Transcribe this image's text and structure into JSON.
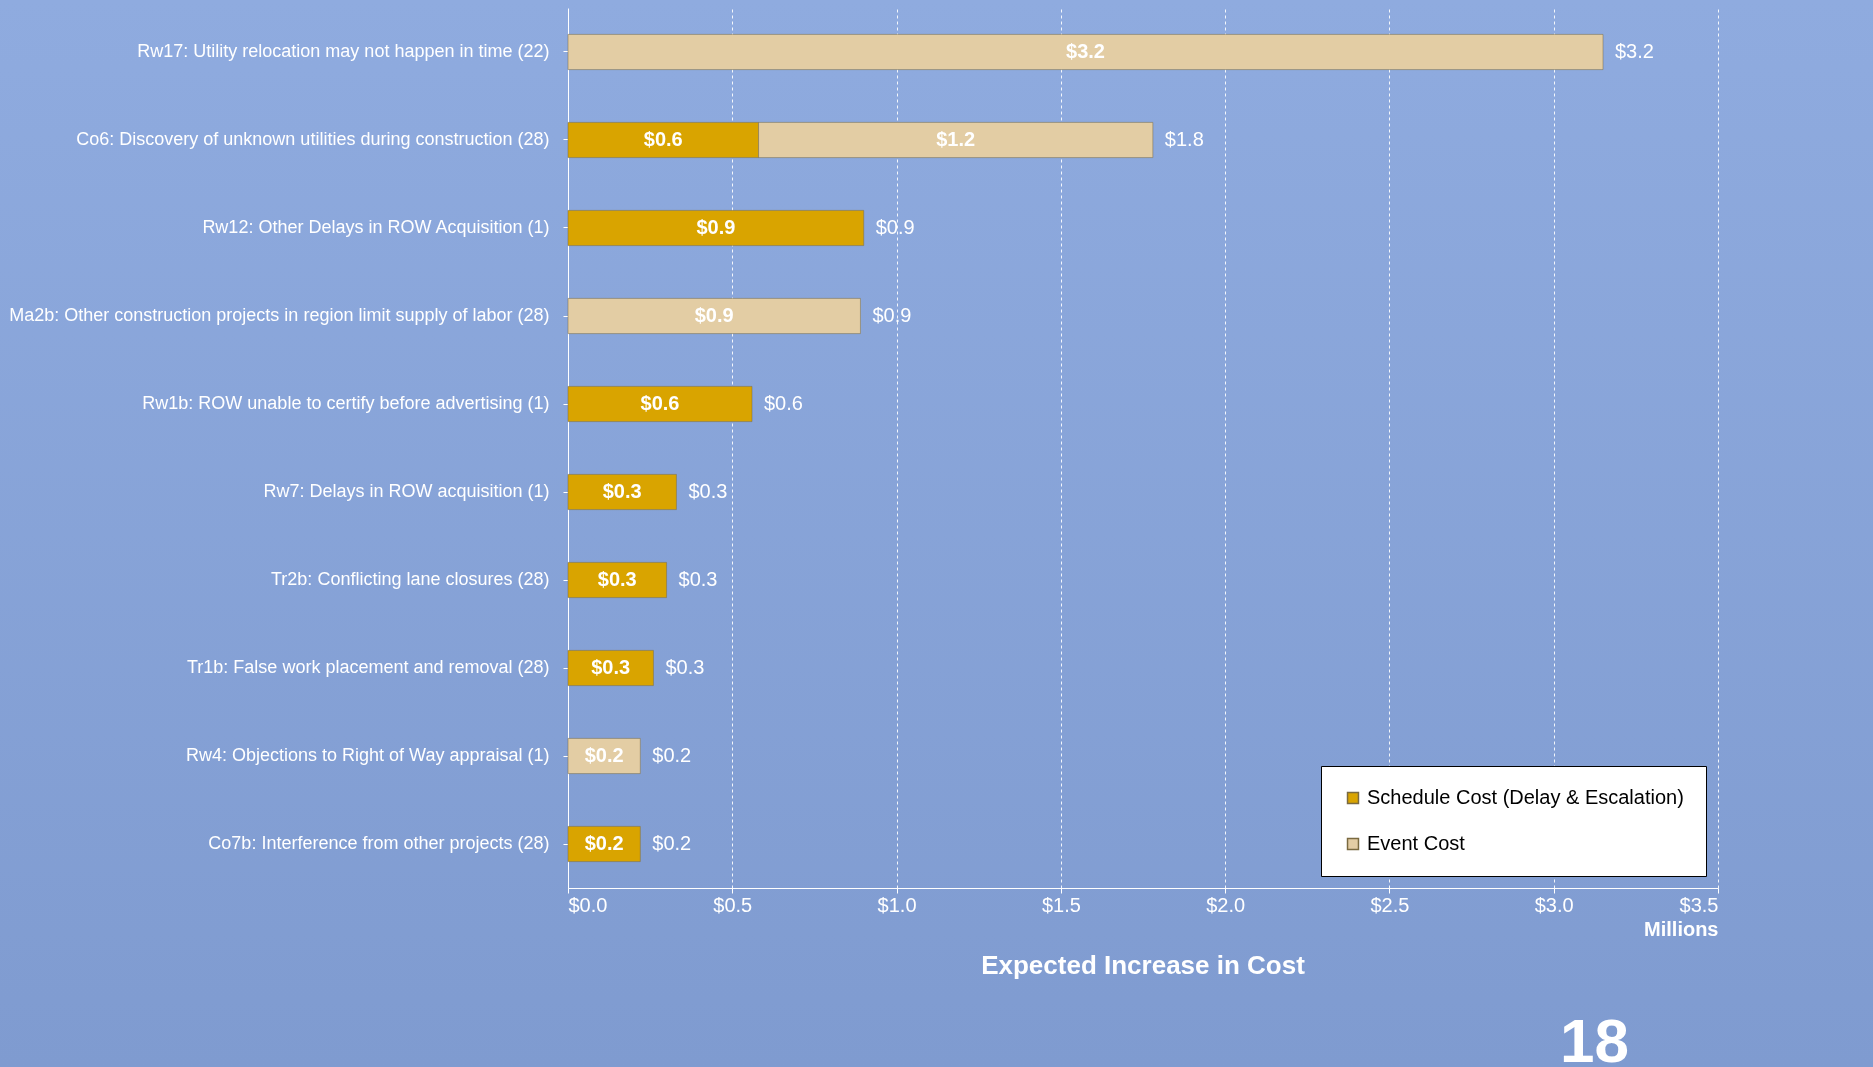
{
  "chart_data": {
    "type": "bar",
    "orientation": "horizontal",
    "stacked": true,
    "title": "Expected Increase in Cost",
    "xlabel": "Millions",
    "categories": [
      "Rw17: Utility relocation may not happen in time (22)",
      "Co6: Discovery of unknown utilities during construction (28)",
      "Rw12: Other Delays in ROW Acquisition (1)",
      "Ma2b: Other construction projects in region limit supply of labor (28)",
      "Rw1b: ROW  unable to certify before advertising (1)",
      "Rw7: Delays in ROW acquisition (1)",
      "Tr2b: Conflicting lane closures (28)",
      "Tr1b: False work placement and removal (28)",
      "Rw4: Objections to Right of Way appraisal (1)",
      "Co7b: Interference from other projects (28)"
    ],
    "series": [
      {
        "name": "Schedule Cost (Delay & Escalation)",
        "color": "#d9a400",
        "values": [
          null,
          0.58,
          0.9,
          null,
          0.56,
          0.33,
          0.3,
          0.26,
          null,
          0.22
        ],
        "value_labels": [
          null,
          "$0.6",
          "$0.9",
          null,
          "$0.6",
          "$0.3",
          "$0.3",
          "$0.3",
          null,
          "$0.2"
        ]
      },
      {
        "name": "Event Cost",
        "color": "#e3cda4",
        "values": [
          3.15,
          1.2,
          null,
          0.89,
          null,
          null,
          null,
          null,
          0.22,
          null
        ],
        "value_labels": [
          "$3.2",
          "$1.2",
          null,
          "$0.9",
          null,
          null,
          null,
          null,
          "$0.2",
          null
        ]
      }
    ],
    "totals": [
      "$3.2",
      "$1.8",
      "$0.9",
      "$0.9",
      "$0.6",
      "$0.3",
      "$0.3",
      "$0.3",
      "$0.2",
      "$0.2"
    ],
    "xlim": [
      0,
      3.5
    ],
    "xticks": [
      {
        "value": 0,
        "label": "$0.0"
      },
      {
        "value": 0.5,
        "label": "$0.5"
      },
      {
        "value": 1,
        "label": "$1.0"
      },
      {
        "value": 1.5,
        "label": "$1.5"
      },
      {
        "value": 2,
        "label": "$2.0"
      },
      {
        "value": 2.5,
        "label": "$2.5"
      },
      {
        "value": 3,
        "label": "$3.0"
      },
      {
        "value": 3.5,
        "label": "$3.5"
      }
    ],
    "grid": "x",
    "legend": "bottom right",
    "annotations": [
      "18"
    ]
  }
}
